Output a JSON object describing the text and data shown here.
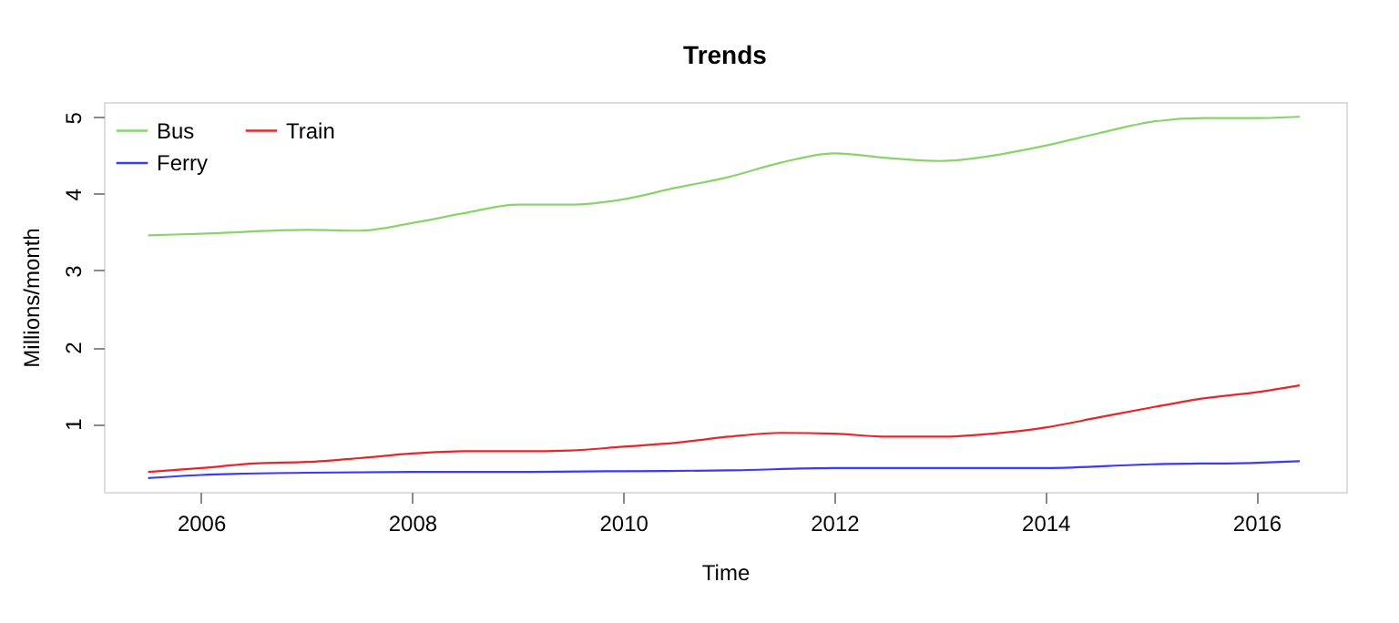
{
  "chart_data": {
    "type": "line",
    "title": "Trends",
    "xlabel": "Time",
    "ylabel": "Millions/month",
    "xlim": [
      2005.08,
      2016.85
    ],
    "xticks": [
      2006,
      2008,
      2010,
      2012,
      2014,
      2016
    ],
    "ylim": [
      0.11,
      5.2
    ],
    "yticks": [
      1,
      2,
      3,
      4,
      5
    ],
    "grid": false,
    "legend": "top left",
    "series": [
      {
        "name": "Bus",
        "color": "#8ad36a",
        "x": [
          2005.5,
          2006,
          2007,
          2007.5,
          2008,
          2008.5,
          2009,
          2009.5,
          2010,
          2010.5,
          2011,
          2011.5,
          2012,
          2012.5,
          2013,
          2013.5,
          2014,
          2014.5,
          2015,
          2015.5,
          2016,
          2016.41
        ],
        "values": [
          3.46,
          3.48,
          3.53,
          3.52,
          3.62,
          3.75,
          3.86,
          3.86,
          3.93,
          4.08,
          4.22,
          4.41,
          4.53,
          4.47,
          4.43,
          4.5,
          4.63,
          4.79,
          4.94,
          4.99,
          4.99,
          5.01
        ]
      },
      {
        "name": "Train",
        "color": "#e8262a",
        "x": [
          2005.5,
          2006,
          2006.5,
          2007,
          2007.5,
          2008,
          2008.5,
          2009,
          2009.5,
          2010,
          2010.5,
          2011,
          2011.5,
          2012,
          2012.5,
          2013,
          2013.5,
          2014,
          2014.5,
          2015,
          2015.5,
          2016,
          2016.41
        ],
        "values": [
          0.37,
          0.42,
          0.48,
          0.5,
          0.55,
          0.61,
          0.64,
          0.64,
          0.65,
          0.7,
          0.75,
          0.83,
          0.88,
          0.87,
          0.83,
          0.83,
          0.87,
          0.95,
          1.08,
          1.21,
          1.33,
          1.41,
          1.5
        ]
      },
      {
        "name": "Ferry",
        "color": "#3a3afa",
        "x": [
          2005.5,
          2006,
          2007,
          2008,
          2009,
          2010,
          2011,
          2012,
          2013,
          2014,
          2015,
          2016,
          2016.41
        ],
        "values": [
          0.29,
          0.33,
          0.36,
          0.37,
          0.37,
          0.38,
          0.39,
          0.42,
          0.42,
          0.42,
          0.47,
          0.49,
          0.51
        ]
      }
    ]
  }
}
